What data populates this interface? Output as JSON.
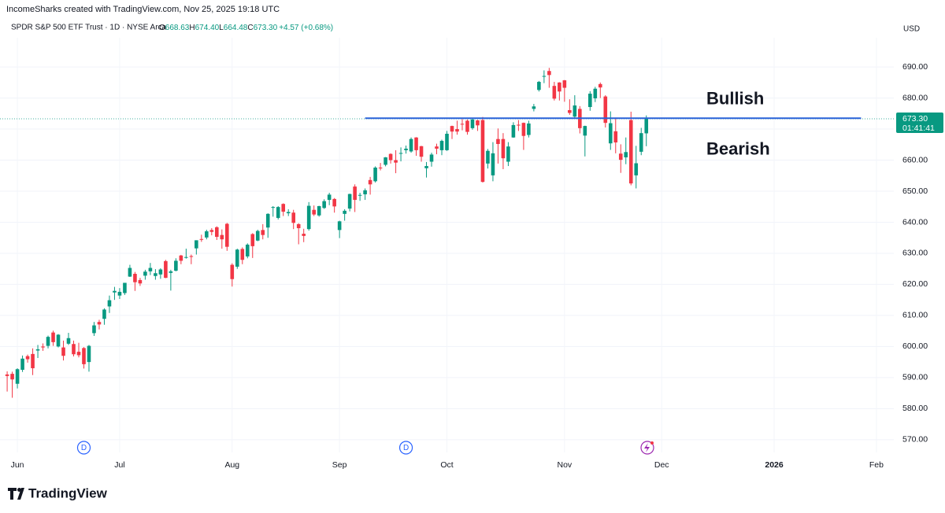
{
  "header": {
    "credit": "IncomeSharks created with TradingView.com, Nov 25, 2025 19:18 UTC",
    "symbol": "SPDR S&P 500 ETF Trust · 1D · NYSE Arca",
    "legend": [
      {
        "key": "O",
        "value": "668.63"
      },
      {
        "key": "H",
        "value": "674.40"
      },
      {
        "key": "L",
        "value": "664.48"
      },
      {
        "key": "C",
        "value": "673.30"
      }
    ],
    "change": "+4.57 (+0.68%)",
    "currency": "USD"
  },
  "chart_data": {
    "type": "candlestick",
    "up_color": "#089981",
    "down_color": "#f23645",
    "ylim": [
      565.9,
      699.4
    ],
    "yticks": [
      {
        "value": 570,
        "label": "570.00"
      },
      {
        "value": 580,
        "label": "580.00"
      },
      {
        "value": 590,
        "label": "590.00"
      },
      {
        "value": 600,
        "label": "600.00"
      },
      {
        "value": 610,
        "label": "610.00"
      },
      {
        "value": 620,
        "label": "620.00"
      },
      {
        "value": 630,
        "label": "630.00"
      },
      {
        "value": 640,
        "label": "640.00"
      },
      {
        "value": 650,
        "label": "650.00"
      },
      {
        "value": 660,
        "label": "660.00"
      },
      {
        "value": 670,
        "label": "670.00"
      },
      {
        "value": 680,
        "label": "680.00"
      },
      {
        "value": 690,
        "label": "690.00"
      }
    ],
    "grid": true,
    "xlim": [
      -1.4,
      173.4
    ],
    "xticks": [
      {
        "value": 2,
        "label": "Jun"
      },
      {
        "value": 22,
        "label": "Jul"
      },
      {
        "value": 44,
        "label": "Aug"
      },
      {
        "value": 65,
        "label": "Sep"
      },
      {
        "value": 86,
        "label": "Oct"
      },
      {
        "value": 109,
        "label": "Nov"
      },
      {
        "value": 128,
        "label": "Dec"
      },
      {
        "value": 150,
        "label": "2026"
      },
      {
        "value": 170,
        "label": "Feb"
      }
    ],
    "ohlc": [
      [
        591.0,
        592.0,
        585.5,
        590.5
      ],
      [
        591.2,
        591.9,
        583.5,
        589.4
      ],
      [
        588.0,
        593.0,
        586.5,
        592.7
      ],
      [
        592.5,
        597.1,
        591.8,
        596.1
      ],
      [
        596.9,
        597.4,
        594.8,
        595.9
      ],
      [
        597.6,
        599.4,
        590.8,
        593.0
      ],
      [
        598.7,
        600.5,
        596.3,
        599.1
      ],
      [
        600.0,
        601.0,
        598.6,
        599.7
      ],
      [
        600.2,
        603.5,
        599.4,
        603.1
      ],
      [
        604.5,
        605.1,
        600.2,
        601.4
      ],
      [
        600.0,
        604.0,
        599.7,
        603.8
      ],
      [
        599.7,
        601.9,
        595.5,
        597.0
      ],
      [
        600.9,
        604.4,
        600.5,
        602.7
      ],
      [
        600.8,
        601.9,
        596.8,
        597.5
      ],
      [
        598.3,
        601.2,
        596.5,
        597.2
      ],
      [
        599.5,
        599.8,
        592.9,
        594.3
      ],
      [
        595.0,
        600.5,
        591.9,
        600.2
      ],
      [
        604.3,
        607.9,
        603.4,
        606.8
      ],
      [
        607.9,
        608.6,
        605.5,
        607.1
      ],
      [
        608.9,
        612.3,
        607.0,
        611.9
      ],
      [
        612.9,
        616.4,
        610.8,
        614.9
      ],
      [
        617.4,
        619.2,
        615.0,
        617.9
      ],
      [
        616.4,
        618.8,
        615.3,
        617.6
      ],
      [
        617.2,
        620.5,
        616.6,
        620.5
      ],
      [
        622.5,
        626.3,
        622.4,
        625.3
      ],
      [
        623.4,
        624.0,
        617.9,
        620.7
      ],
      [
        621.4,
        622.1,
        619.5,
        620.3
      ],
      [
        622.8,
        624.7,
        621.5,
        624.1
      ],
      [
        624.2,
        626.9,
        623.0,
        625.3
      ],
      [
        622.7,
        624.9,
        621.5,
        623.6
      ],
      [
        623.2,
        625.2,
        621.8,
        624.8
      ],
      [
        627.5,
        627.9,
        622.0,
        622.1
      ],
      [
        623.7,
        624.7,
        618.0,
        624.2
      ],
      [
        624.4,
        628.4,
        624.2,
        627.6
      ],
      [
        629.3,
        629.5,
        626.5,
        627.6
      ],
      [
        628.8,
        631.5,
        628.3,
        628.8
      ],
      [
        629.1,
        629.6,
        626.5,
        628.9
      ],
      [
        631.6,
        634.2,
        629.6,
        634.2
      ],
      [
        634.6,
        636.0,
        633.7,
        634.4
      ],
      [
        635.1,
        637.6,
        634.5,
        637.1
      ],
      [
        637.5,
        638.1,
        635.8,
        636.9
      ],
      [
        638.4,
        638.7,
        634.3,
        635.3
      ],
      [
        635.9,
        637.7,
        631.5,
        634.5
      ],
      [
        639.5,
        639.8,
        630.8,
        632.1
      ],
      [
        626.3,
        626.8,
        619.3,
        621.7
      ],
      [
        625.7,
        631.5,
        625.0,
        631.2
      ],
      [
        631.4,
        631.9,
        626.5,
        627.9
      ],
      [
        629.0,
        633.2,
        628.4,
        632.8
      ],
      [
        636.2,
        636.5,
        628.5,
        632.3
      ],
      [
        634.1,
        637.6,
        633.9,
        637.2
      ],
      [
        637.5,
        639.4,
        634.5,
        635.9
      ],
      [
        638.3,
        642.9,
        635.0,
        642.7
      ],
      [
        644.7,
        645.2,
        641.8,
        644.9
      ],
      [
        641.4,
        645.2,
        640.9,
        644.9
      ],
      [
        645.9,
        646.1,
        642.0,
        643.4
      ],
      [
        642.9,
        644.2,
        642.0,
        643.3
      ],
      [
        643.1,
        644.0,
        637.8,
        639.8
      ],
      [
        639.4,
        639.7,
        632.9,
        638.1
      ],
      [
        636.3,
        637.9,
        633.6,
        635.6
      ],
      [
        637.8,
        646.5,
        637.3,
        645.3
      ],
      [
        644.0,
        645.4,
        642.0,
        642.5
      ],
      [
        642.2,
        645.3,
        641.8,
        645.2
      ],
      [
        644.6,
        647.4,
        644.3,
        646.8
      ],
      [
        647.2,
        649.5,
        645.5,
        648.9
      ],
      [
        647.5,
        647.8,
        643.1,
        645.1
      ],
      [
        637.5,
        640.5,
        634.9,
        640.3
      ],
      [
        642.7,
        644.2,
        640.5,
        643.7
      ],
      [
        644.4,
        649.2,
        643.5,
        649.1
      ],
      [
        651.5,
        652.2,
        643.3,
        647.2
      ],
      [
        648.6,
        649.5,
        646.9,
        648.8
      ],
      [
        649.0,
        650.9,
        647.2,
        650.3
      ],
      [
        653.6,
        654.6,
        648.9,
        652.2
      ],
      [
        653.2,
        658.0,
        652.8,
        657.6
      ],
      [
        657.6,
        659.1,
        656.7,
        657.4
      ],
      [
        658.5,
        661.0,
        658.0,
        660.9
      ],
      [
        662.0,
        662.2,
        658.9,
        660.0
      ],
      [
        660.0,
        663.2,
        655.8,
        659.2
      ],
      [
        662.2,
        664.1,
        659.6,
        662.3
      ],
      [
        663.2,
        664.7,
        662.1,
        663.7
      ],
      [
        662.8,
        667.3,
        662.4,
        666.8
      ],
      [
        667.3,
        667.4,
        661.4,
        663.2
      ],
      [
        664.5,
        664.6,
        659.5,
        661.1
      ],
      [
        657.4,
        659.4,
        654.4,
        658.1
      ],
      [
        659.5,
        662.4,
        657.9,
        661.8
      ],
      [
        664.4,
        665.3,
        661.9,
        663.7
      ],
      [
        663.2,
        666.6,
        661.6,
        666.2
      ],
      [
        663.2,
        669.4,
        663.0,
        668.5
      ],
      [
        671.0,
        671.1,
        666.8,
        669.2
      ],
      [
        670.0,
        672.7,
        668.2,
        669.2
      ],
      [
        671.7,
        673.2,
        669.6,
        671.6
      ],
      [
        672.7,
        673.1,
        668.2,
        669.1
      ],
      [
        670.3,
        673.2,
        669.8,
        673.1
      ],
      [
        672.8,
        673.0,
        669.4,
        671.2
      ],
      [
        672.9,
        673.9,
        652.8,
        653.0
      ],
      [
        658.9,
        663.6,
        657.3,
        663.0
      ],
      [
        655.1,
        665.8,
        653.2,
        662.2
      ],
      [
        666.8,
        670.2,
        658.9,
        665.2
      ],
      [
        666.8,
        668.7,
        657.1,
        660.6
      ],
      [
        659.5,
        665.8,
        658.1,
        664.4
      ],
      [
        667.3,
        672.2,
        667.2,
        671.3
      ],
      [
        671.4,
        672.9,
        669.4,
        671.3
      ],
      [
        672.0,
        672.1,
        663.3,
        667.8
      ],
      [
        668.1,
        672.7,
        667.3,
        671.8
      ],
      [
        676.5,
        678.1,
        675.7,
        677.3
      ],
      [
        682.6,
        685.5,
        682.1,
        685.2
      ],
      [
        687.0,
        688.9,
        684.8,
        687.1
      ],
      [
        688.7,
        689.7,
        683.3,
        687.4
      ],
      [
        683.9,
        685.2,
        679.2,
        679.8
      ],
      [
        685.0,
        685.1,
        679.2,
        682.1
      ],
      [
        685.7,
        685.8,
        678.8,
        683.3
      ],
      [
        676.1,
        679.6,
        674.6,
        675.2
      ],
      [
        674.0,
        680.9,
        673.6,
        677.6
      ],
      [
        676.5,
        677.4,
        668.6,
        670.3
      ],
      [
        667.9,
        671.1,
        661.2,
        671.0
      ],
      [
        677.1,
        682.2,
        675.9,
        681.4
      ],
      [
        679.9,
        683.6,
        678.7,
        683.0
      ],
      [
        684.5,
        685.0,
        680.0,
        683.4
      ],
      [
        680.5,
        680.9,
        670.5,
        672.0
      ],
      [
        665.4,
        675.7,
        663.3,
        671.9
      ],
      [
        669.3,
        673.7,
        662.2,
        665.7
      ],
      [
        662.1,
        665.1,
        655.9,
        660.1
      ],
      [
        660.9,
        667.3,
        658.7,
        662.6
      ],
      [
        672.9,
        675.6,
        651.9,
        652.5
      ],
      [
        655.1,
        664.6,
        650.9,
        659.0
      ],
      [
        662.7,
        670.4,
        661.6,
        668.7
      ],
      [
        668.63,
        674.4,
        664.48,
        673.3
      ]
    ],
    "hline": {
      "value": 673.5,
      "from": 70,
      "to": 167,
      "color": "#2962d8"
    },
    "annotations": [
      {
        "text": "Bullish",
        "value": 679.5
      },
      {
        "text": "Bearish",
        "value": 663.2
      }
    ],
    "last_price": {
      "value": 673.3,
      "label": "673.30",
      "countdown": "01:41:41"
    },
    "events": [
      {
        "label": "D",
        "index": 15
      },
      {
        "label": "D",
        "index": 78
      }
    ]
  },
  "footer": {
    "logo": "TradingView"
  }
}
